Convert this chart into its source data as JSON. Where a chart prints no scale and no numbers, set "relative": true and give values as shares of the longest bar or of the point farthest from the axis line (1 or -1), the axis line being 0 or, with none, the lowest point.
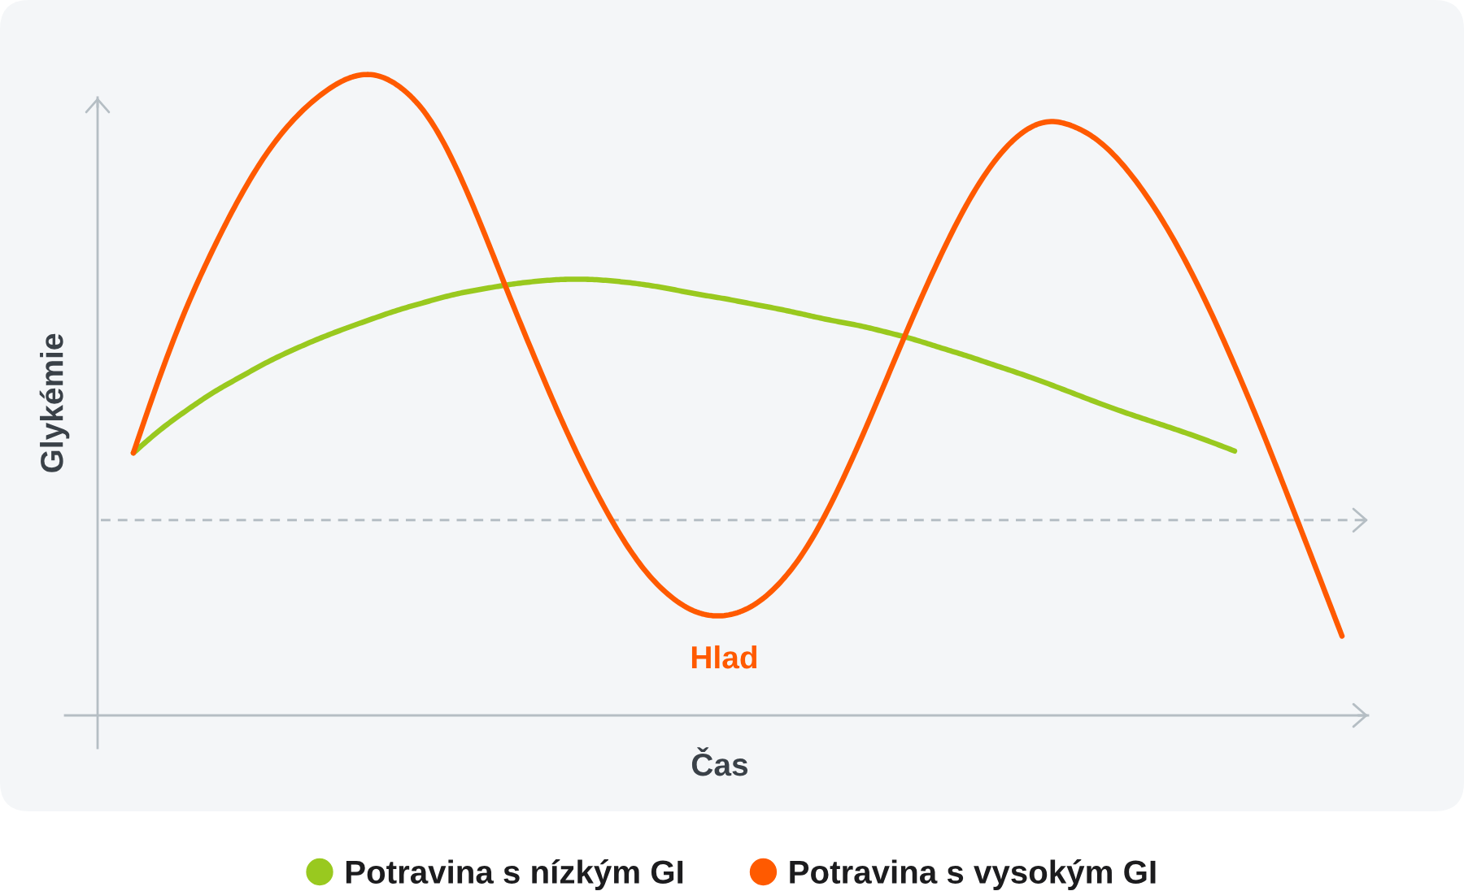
{
  "chart_data": {
    "type": "line",
    "xlabel": "Čas",
    "ylabel": "Glykémie",
    "relative": true,
    "line_style": "solid",
    "legend": "bottom",
    "categories": [
      null,
      null,
      null,
      null,
      null,
      null,
      null,
      null,
      null,
      null,
      null,
      null,
      null,
      null,
      null,
      null,
      null,
      null,
      null,
      null,
      null,
      null,
      null,
      null,
      null,
      null,
      null,
      null,
      null,
      null,
      null,
      null,
      null,
      null,
      null,
      null,
      null,
      null,
      null,
      null,
      null,
      null,
      null,
      null,
      null,
      null
    ],
    "series": [
      {
        "name": "Potravina s nízkým GI",
        "color": "#99c91f",
        "values": [
          0.41,
          0.446,
          0.477,
          0.505,
          0.529,
          0.552,
          0.572,
          0.59,
          0.606,
          0.621,
          0.635,
          0.647,
          0.658,
          0.666,
          0.673,
          0.678,
          0.681,
          0.681,
          0.678,
          0.673,
          0.666,
          0.658,
          0.651,
          0.643,
          0.635,
          0.626,
          0.617,
          0.609,
          0.599,
          0.588,
          0.575,
          0.562,
          0.548,
          0.534,
          0.519,
          0.503,
          0.487,
          0.472,
          0.458,
          0.444,
          0.429,
          0.413,
          null,
          null,
          null,
          null
        ]
      },
      {
        "name": "Potravina s vysokým GI",
        "color": "#ff5a00",
        "values": [
          0.41,
          0.531,
          0.639,
          0.731,
          0.812,
          0.88,
          0.932,
          0.97,
          0.995,
          1,
          0.979,
          0.933,
          0.857,
          0.76,
          0.655,
          0.553,
          0.456,
          0.368,
          0.291,
          0.229,
          0.186,
          0.161,
          0.156,
          0.17,
          0.204,
          0.258,
          0.333,
          0.423,
          0.521,
          0.62,
          0.713,
          0.796,
          0.862,
          0.907,
          0.927,
          0.92,
          0.895,
          0.852,
          0.794,
          0.723,
          0.64,
          0.547,
          0.447,
          0.341,
          0.233,
          0.124
        ]
      }
    ],
    "ref_lines": [
      {
        "axis": "y",
        "value": 0.305,
        "color": "#b5bec4",
        "line_style": "dashed"
      }
    ],
    "annotations": [
      "Hlad"
    ]
  }
}
